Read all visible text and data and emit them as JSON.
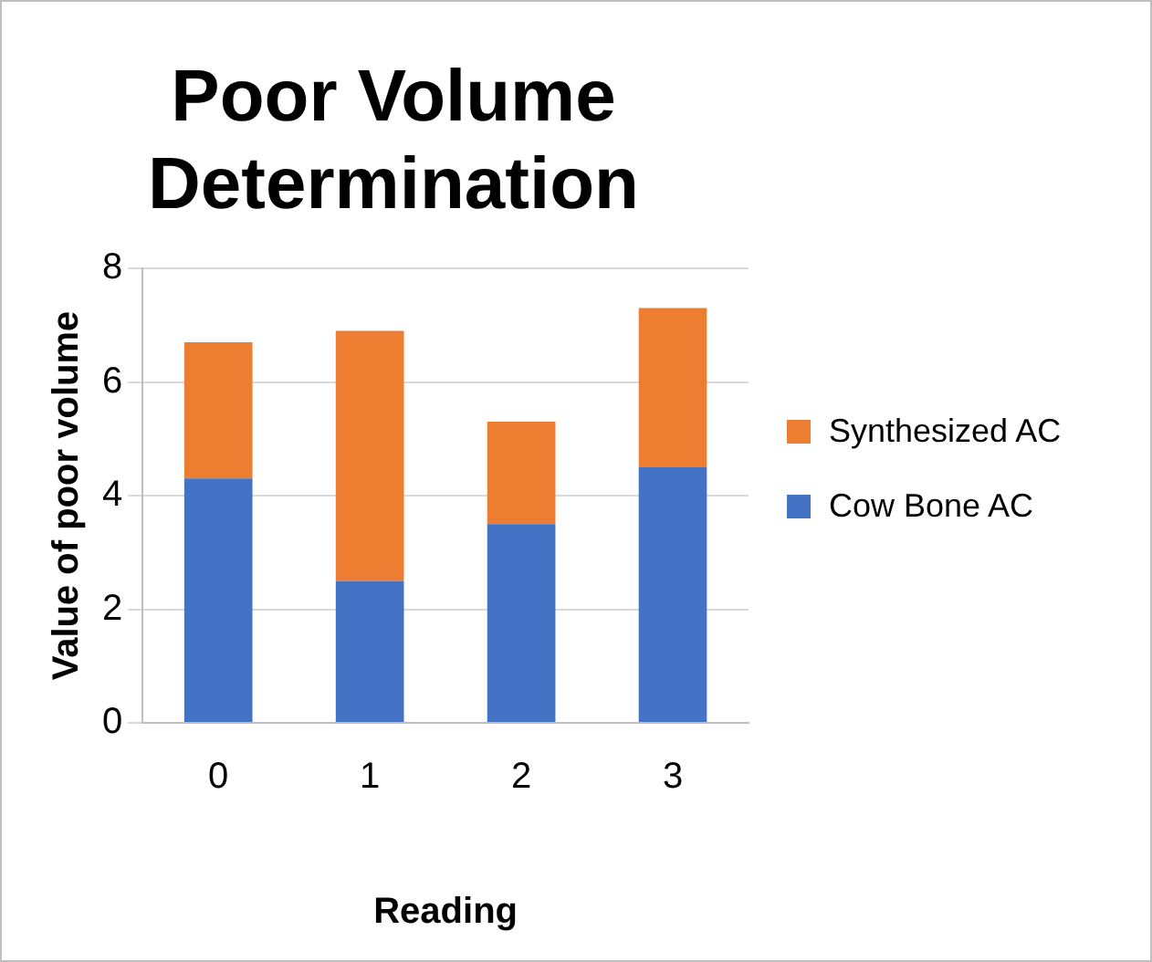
{
  "chart_data": {
    "type": "bar",
    "title": "Poor Volume Determination",
    "xlabel": "Reading",
    "ylabel": "Value of poor volume",
    "categories": [
      "0",
      "1",
      "2",
      "3"
    ],
    "stacked": true,
    "series": [
      {
        "name": "Cow Bone AC",
        "color": "#4472c4",
        "values": [
          4.3,
          2.5,
          3.5,
          4.5
        ]
      },
      {
        "name": "Synthesized AC",
        "color": "#ed7d31",
        "values": [
          2.4,
          4.4,
          1.8,
          2.8
        ]
      }
    ],
    "ylim": [
      0,
      8
    ],
    "yticks": [
      0,
      2,
      4,
      6,
      8
    ],
    "grid": "y",
    "legend": "right"
  }
}
